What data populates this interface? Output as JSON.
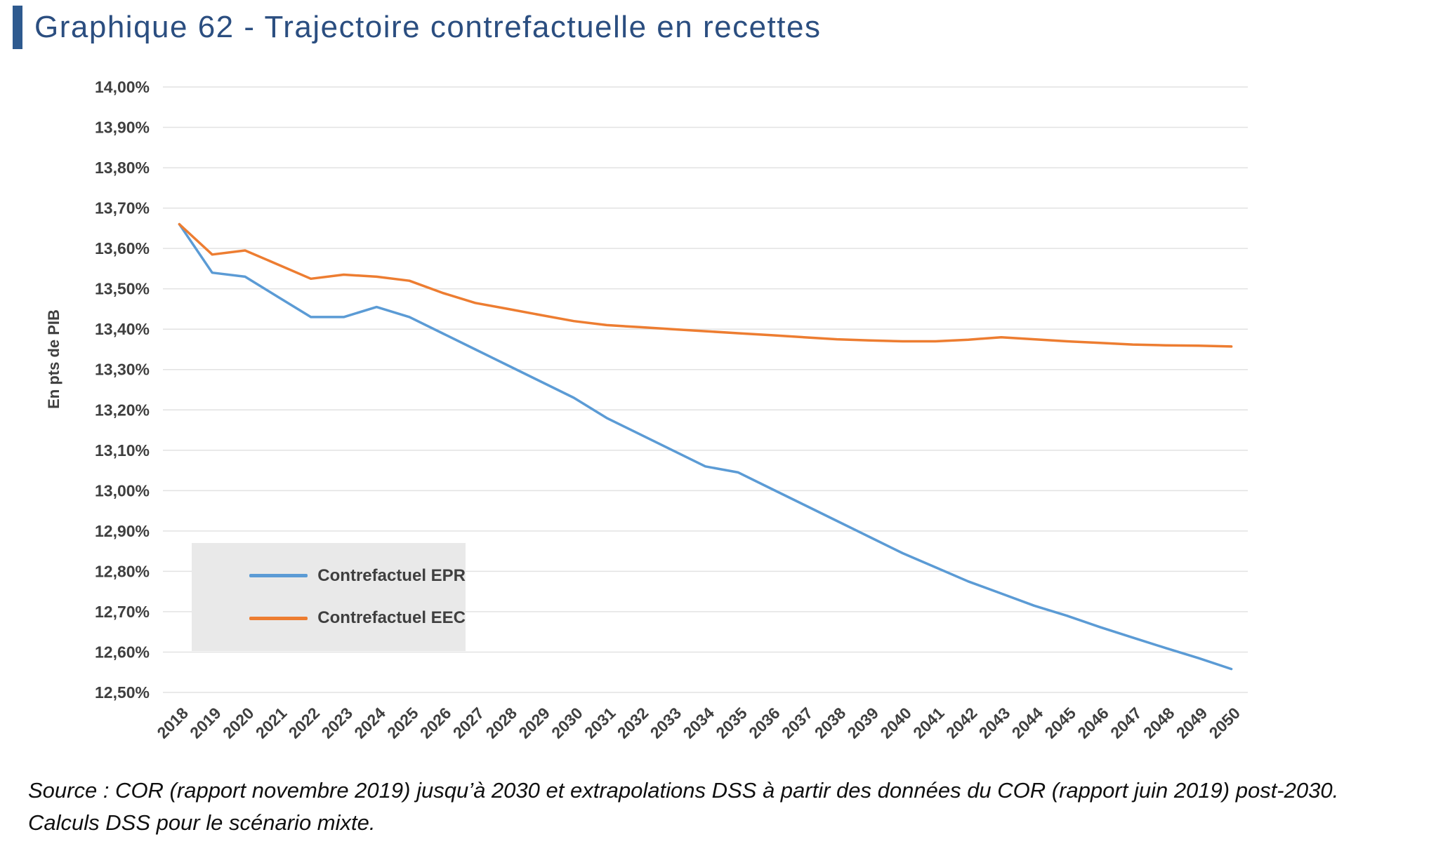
{
  "header": {
    "title": "Graphique 62 - Trajectoire contrefactuelle en recettes",
    "accent_bar_color": "#2E5A8F",
    "title_color": "#2B4E80"
  },
  "chart_data": {
    "type": "line",
    "title": "Graphique 62 - Trajectoire contrefactuelle en recettes",
    "xlabel": "",
    "ylabel": "En pts de PIB",
    "ylim": [
      12.5,
      14.0
    ],
    "ytick_step": 0.1,
    "grid": true,
    "legend_position": "inside bottom-left",
    "ytick_labels": [
      "14,00%",
      "13,90%",
      "13,80%",
      "13,70%",
      "13,60%",
      "13,50%",
      "13,40%",
      "13,30%",
      "13,20%",
      "13,10%",
      "13,00%",
      "12,90%",
      "12,80%",
      "12,70%",
      "12,60%",
      "12,50%"
    ],
    "x": [
      2018,
      2019,
      2020,
      2021,
      2022,
      2023,
      2024,
      2025,
      2026,
      2027,
      2028,
      2029,
      2030,
      2031,
      2032,
      2033,
      2034,
      2035,
      2036,
      2037,
      2038,
      2039,
      2040,
      2041,
      2042,
      2043,
      2044,
      2045,
      2046,
      2047,
      2048,
      2049,
      2050
    ],
    "series": [
      {
        "name": "Contrefactuel EPR",
        "color": "#5B9BD5",
        "values": [
          13.66,
          13.54,
          13.53,
          13.48,
          13.43,
          13.43,
          13.455,
          13.43,
          13.39,
          13.35,
          13.31,
          13.27,
          13.23,
          13.18,
          13.14,
          13.1,
          13.06,
          13.045,
          13.005,
          12.965,
          12.925,
          12.885,
          12.845,
          12.81,
          12.775,
          12.745,
          12.715,
          12.69,
          12.662,
          12.636,
          12.61,
          12.585,
          12.558
        ]
      },
      {
        "name": "Contrefactuel EEC",
        "color": "#ED7D31",
        "values": [
          13.66,
          13.585,
          13.595,
          13.56,
          13.525,
          13.535,
          13.53,
          13.52,
          13.49,
          13.465,
          13.45,
          13.435,
          13.42,
          13.41,
          13.405,
          13.4,
          13.395,
          13.39,
          13.385,
          13.38,
          13.375,
          13.372,
          13.37,
          13.37,
          13.374,
          13.38,
          13.375,
          13.37,
          13.366,
          13.362,
          13.36,
          13.359,
          13.357
        ]
      }
    ],
    "gridline_color": "#E2E2E2",
    "tick_label_color": "#3F3F3F",
    "legend_background": "#E9E9E9"
  },
  "source": {
    "line1": "Source : COR (rapport novembre 2019) jusqu’à 2030 et extrapolations DSS à partir des données du COR (rapport juin 2019) post-2030.",
    "line2": "Calculs DSS pour le scénario mixte."
  }
}
